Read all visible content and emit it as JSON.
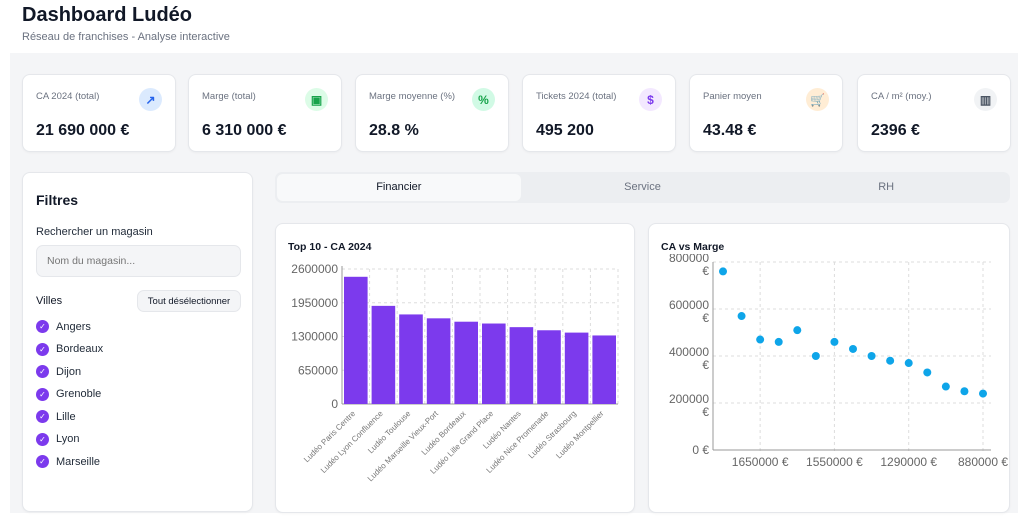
{
  "header": {
    "title": "Dashboard Ludéo",
    "subtitle": "Réseau de franchises - Analyse interactive"
  },
  "kpis": [
    {
      "label": "CA 2024 (total)",
      "value": "21 690 000 €",
      "icon": "trending-up-icon",
      "color": "#2563eb",
      "bg": "#dbeafe",
      "glyph": "↗"
    },
    {
      "label": "Marge (total)",
      "value": "6 310 000 €",
      "icon": "wallet-icon",
      "color": "#16a34a",
      "bg": "#dcfce7",
      "glyph": "▣"
    },
    {
      "label": "Marge moyenne (%)",
      "value": "28.8 %",
      "icon": "percent-icon",
      "color": "#16a34a",
      "bg": "#d1fae5",
      "glyph": "%"
    },
    {
      "label": "Tickets 2024 (total)",
      "value": "495 200",
      "icon": "receipt-icon",
      "color": "#7c3aed",
      "bg": "#f3e8ff",
      "glyph": "$"
    },
    {
      "label": "Panier moyen",
      "value": "43.48 €",
      "icon": "cart-icon",
      "color": "#ea580c",
      "bg": "#ffedd5",
      "glyph": "🛒"
    },
    {
      "label": "CA / m² (moy.)",
      "value": "2396 €",
      "icon": "building-icon",
      "color": "#4b5563",
      "bg": "#f1f3f5",
      "glyph": "▥"
    }
  ],
  "filters": {
    "title": "Filtres",
    "search_label": "Rechercher un magasin",
    "search_placeholder": "Nom du magasin...",
    "search_value": "",
    "cities_label": "Villes",
    "deselect_all": "Tout désélectionner",
    "cities": [
      {
        "name": "Angers",
        "checked": true
      },
      {
        "name": "Bordeaux",
        "checked": true
      },
      {
        "name": "Dijon",
        "checked": true
      },
      {
        "name": "Grenoble",
        "checked": true
      },
      {
        "name": "Lille",
        "checked": true
      },
      {
        "name": "Lyon",
        "checked": true
      },
      {
        "name": "Marseille",
        "checked": true
      }
    ]
  },
  "tabs": [
    {
      "label": "Financier",
      "active": true
    },
    {
      "label": "Service",
      "active": false
    },
    {
      "label": "RH",
      "active": false
    }
  ],
  "colors": {
    "accent": "#7c3aed",
    "scatter": "#0ea5e9"
  },
  "chart_data": [
    {
      "type": "bar",
      "title": "Top 10 - CA 2024",
      "xlabel": "",
      "ylabel": "",
      "ylim": [
        0,
        2600000
      ],
      "yticks": [
        0,
        650000,
        1300000,
        1950000,
        2600000
      ],
      "grid": true,
      "categories": [
        "Ludéo Paris Centre",
        "Ludéo Lyon Confluence",
        "Ludéo Toulouse",
        "Ludéo Marseille Vieux-Port",
        "Ludéo Bordeaux",
        "Ludéo Lille Grand Place",
        "Ludéo Nantes",
        "Ludéo Nice Promenade",
        "Ludéo Strasbourg",
        "Ludéo Montpellier"
      ],
      "values": [
        2450000,
        1890000,
        1725000,
        1650000,
        1585000,
        1550000,
        1480000,
        1420000,
        1375000,
        1320000
      ]
    },
    {
      "type": "scatter",
      "title": "CA vs Marge",
      "xlabel": "",
      "ylabel": "",
      "ylim": [
        0,
        800000
      ],
      "yticks": [
        "0 €",
        "200000 €",
        "400000 €",
        "600000 €",
        "800000 €"
      ],
      "grid": true,
      "xticks": [
        {
          "index": 2,
          "label": "1650000 €"
        },
        {
          "index": 6,
          "label": "1550000 €"
        },
        {
          "index": 10,
          "label": "1290000 €"
        },
        {
          "index": 14,
          "label": "880000 €"
        }
      ],
      "y": [
        760000,
        570000,
        470000,
        460000,
        510000,
        400000,
        460000,
        430000,
        400000,
        380000,
        370000,
        330000,
        270000,
        250000,
        240000
      ]
    }
  ]
}
